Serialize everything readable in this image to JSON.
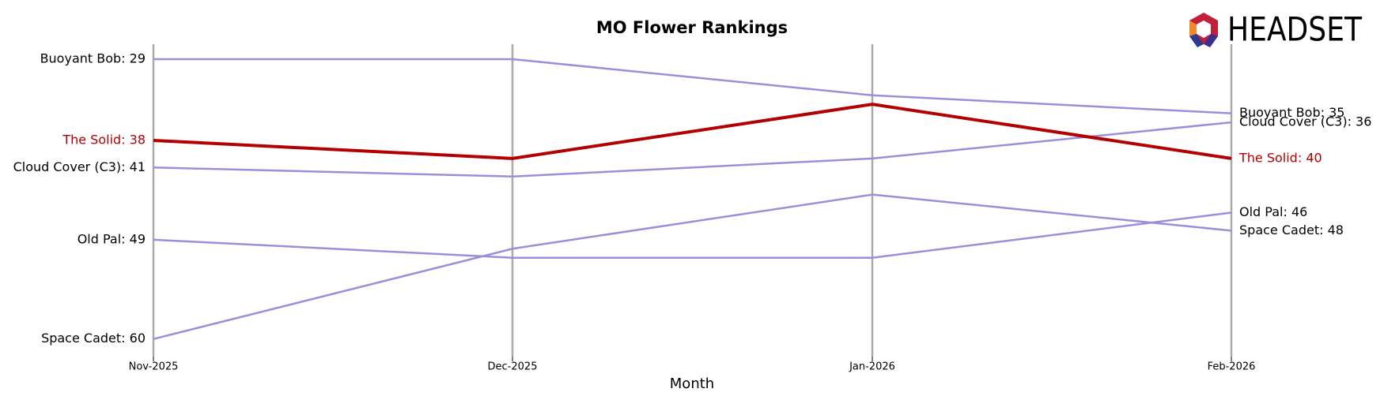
{
  "logo": "HEADSET",
  "chart_data": {
    "type": "bump",
    "title": "MO Flower Rankings",
    "xlabel": "Month",
    "categories": [
      "Nov-2025",
      "Dec-2025",
      "Jan-2026",
      "Feb-2026"
    ],
    "ylim": [
      61.95,
      27.34
    ],
    "series": [
      {
        "name": "Buoyant Bob",
        "color": "#9b8fdb",
        "values": [
          29,
          29,
          33,
          35
        ],
        "value_labels": [
          "Buoyant Bob: 29",
          null,
          null,
          "Buoyant Bob: 35"
        ]
      },
      {
        "name": "Cloud Cover (C3)",
        "color": "#9b8fdb",
        "values": [
          41,
          42,
          40,
          36
        ],
        "value_labels": [
          "Cloud Cover (C3): 41",
          null,
          null,
          "Cloud Cover (C3): 36"
        ]
      },
      {
        "name": "Old Pal",
        "color": "#9b8fdb",
        "values": [
          49,
          51,
          51,
          46
        ],
        "value_labels": [
          "Old Pal: 49",
          null,
          null,
          "Old Pal: 46"
        ]
      },
      {
        "name": "Space Cadet",
        "color": "#9b8fdb",
        "values": [
          60,
          50,
          44,
          48
        ],
        "value_labels": [
          "Space Cadet: 60",
          null,
          null,
          "Space Cadet: 48"
        ]
      },
      {
        "name": "The Solid",
        "color": "#b30000",
        "highlight": true,
        "values": [
          38,
          40,
          34,
          40
        ],
        "value_labels": [
          "The Solid: 38",
          null,
          null,
          "The Solid: 40"
        ]
      }
    ]
  }
}
